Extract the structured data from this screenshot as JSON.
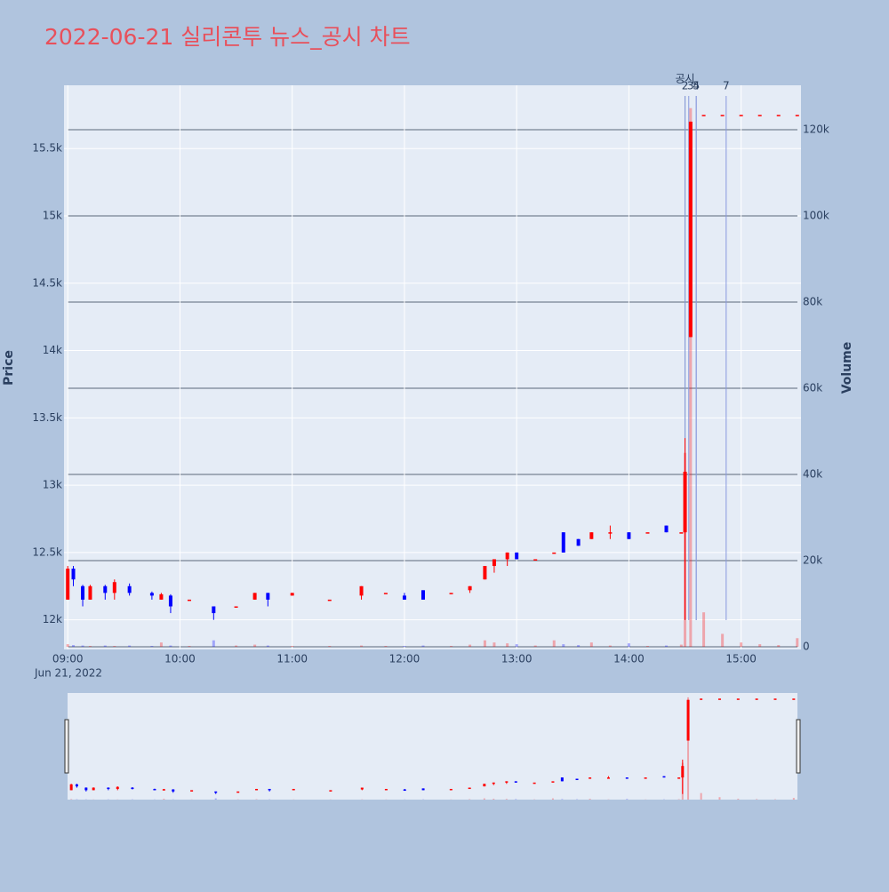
{
  "chart_data": {
    "type": "candlestick",
    "title": "2022-06-21 실리콘투 뉴스_공시 차트",
    "ylabel": "Price",
    "y2label": "Volume",
    "xsublabel": "Jun 21, 2022",
    "increasing_color": "#ff0000",
    "decreasing_color": "#0000ff",
    "xlim": [
      "08:58",
      "15:32"
    ],
    "xticks": [
      "09:00",
      "10:00",
      "11:00",
      "12:00",
      "13:00",
      "14:00",
      "15:00"
    ],
    "ylim": [
      11780,
      15970
    ],
    "yticks": [
      {
        "value": 12000,
        "label": "12k"
      },
      {
        "value": 12500,
        "label": "12.5k"
      },
      {
        "value": 13000,
        "label": "13k"
      },
      {
        "value": 13500,
        "label": "13.5k"
      },
      {
        "value": 14000,
        "label": "14k"
      },
      {
        "value": 14500,
        "label": "14.5k"
      },
      {
        "value": 15000,
        "label": "15k"
      },
      {
        "value": 15500,
        "label": "15.5k"
      }
    ],
    "y2lim": [
      0,
      130300
    ],
    "y2ticks": [
      0,
      {
        "value": 20000,
        "label": "20k"
      },
      {
        "value": 40000,
        "label": "40k"
      },
      {
        "value": 60000,
        "label": "60k"
      },
      {
        "value": 80000,
        "label": "80k"
      },
      {
        "value": 100000,
        "label": "100k"
      },
      {
        "value": 120000,
        "label": "120k"
      }
    ],
    "x": [
      "09:00",
      "09:03",
      "09:08",
      "09:12",
      "09:20",
      "09:25",
      "09:33",
      "09:45",
      "09:50",
      "09:55",
      "10:05",
      "10:18",
      "10:30",
      "10:40",
      "10:47",
      "11:00",
      "11:20",
      "11:37",
      "11:50",
      "12:00",
      "12:10",
      "12:25",
      "12:35",
      "12:43",
      "12:48",
      "12:55",
      "13:00",
      "13:10",
      "13:20",
      "13:25",
      "13:33",
      "13:40",
      "13:50",
      "14:00",
      "14:10",
      "14:20",
      "14:28",
      "14:30",
      "14:33",
      "14:40",
      "14:50",
      "15:00",
      "15:10",
      "15:20",
      "15:30"
    ],
    "open": [
      12150,
      12380,
      12250,
      12150,
      12250,
      12200,
      12250,
      12200,
      12150,
      12180,
      12150,
      12100,
      12100,
      12150,
      12200,
      12180,
      12150,
      12180,
      12200,
      12180,
      12220,
      12200,
      12220,
      12300,
      12400,
      12450,
      12500,
      12450,
      12500,
      12650,
      12600,
      12600,
      12650,
      12650,
      12650,
      12700,
      12650,
      12650,
      14100,
      15750,
      15750,
      15750,
      15750,
      15750,
      15750
    ],
    "high": [
      12400,
      12400,
      12260,
      12260,
      12260,
      12300,
      12270,
      12210,
      12200,
      12190,
      12150,
      12100,
      12100,
      12200,
      12200,
      12200,
      12150,
      12250,
      12200,
      12200,
      12220,
      12200,
      12250,
      12400,
      12450,
      12500,
      12500,
      12450,
      12500,
      12650,
      12600,
      12650,
      12700,
      12650,
      12650,
      12700,
      12650,
      13350,
      15700,
      15750,
      15750,
      15750,
      15750,
      15750,
      15750
    ],
    "low": [
      12150,
      12250,
      12100,
      12150,
      12150,
      12150,
      12180,
      12150,
      12150,
      12050,
      12150,
      12000,
      12100,
      12150,
      12100,
      12180,
      12150,
      12150,
      12200,
      12150,
      12150,
      12200,
      12200,
      12300,
      12350,
      12400,
      12450,
      12450,
      12500,
      12500,
      12550,
      12600,
      12600,
      12600,
      12650,
      12650,
      12650,
      12000,
      14100,
      15750,
      15750,
      15750,
      15750,
      15750,
      15750
    ],
    "close": [
      12380,
      12300,
      12150,
      12250,
      12200,
      12280,
      12200,
      12180,
      12190,
      12100,
      12150,
      12050,
      12100,
      12200,
      12150,
      12200,
      12150,
      12250,
      12200,
      12150,
      12150,
      12200,
      12250,
      12400,
      12450,
      12500,
      12450,
      12450,
      12500,
      12500,
      12550,
      12650,
      12650,
      12600,
      12650,
      12650,
      12650,
      13100,
      15700,
      15750,
      15750,
      15750,
      15750,
      15750,
      15750
    ],
    "volume": [
      600,
      400,
      300,
      200,
      300,
      200,
      300,
      200,
      1000,
      300,
      200,
      1500,
      300,
      500,
      300,
      200,
      200,
      300,
      200,
      200,
      300,
      200,
      500,
      1500,
      1000,
      800,
      600,
      300,
      1500,
      600,
      400,
      1000,
      300,
      800,
      200,
      300,
      500,
      45000,
      125000,
      8000,
      3000,
      1000,
      600,
      400,
      2000
    ],
    "markers": [
      {
        "label": "공시",
        "x": "14:30"
      },
      {
        "label": "2",
        "x": "14:30"
      },
      {
        "label": "3",
        "x": "14:32"
      },
      {
        "label": "4",
        "x": "14:36"
      },
      {
        "label": "5",
        "x": "14:36"
      },
      {
        "label": "7",
        "x": "14:52"
      }
    ]
  }
}
